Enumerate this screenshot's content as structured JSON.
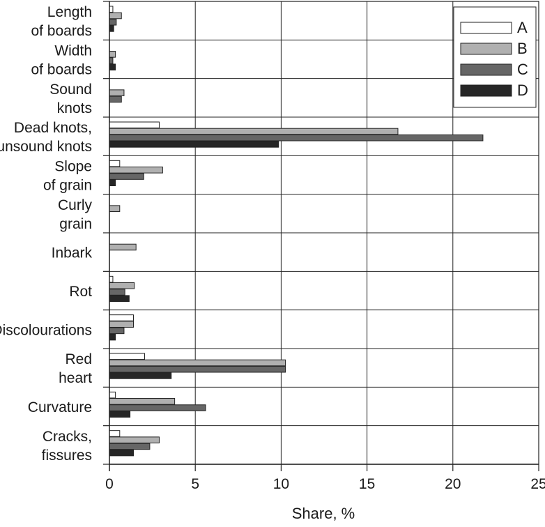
{
  "chart_data": {
    "type": "bar",
    "orientation": "horizontal",
    "title": "",
    "xlabel": "Share, %",
    "ylabel": "",
    "xlim": [
      0,
      25
    ],
    "x_ticks": [
      "0",
      "5",
      "10",
      "15",
      "20",
      "25"
    ],
    "grid": true,
    "legend_position": "top-right",
    "categories": [
      [
        "Length",
        "of boards"
      ],
      [
        "Width",
        "of boards"
      ],
      [
        "Sound",
        "knots"
      ],
      [
        "Dead knots,",
        "unsound knots"
      ],
      [
        "Slope",
        "of grain"
      ],
      [
        "Curly",
        "grain"
      ],
      [
        "Inbark"
      ],
      [
        "Rot"
      ],
      [
        "Discolourations"
      ],
      [
        "Red",
        "heart"
      ],
      [
        "Curvature"
      ],
      [
        "Cracks,",
        "fissures"
      ]
    ],
    "series": [
      {
        "name": "A",
        "color": "#ffffff",
        "values": [
          0.2,
          0,
          0,
          2.9,
          0.6,
          0,
          0,
          0.2,
          1.4,
          2.05,
          0.35,
          0.6
        ]
      },
      {
        "name": "B",
        "color": "#b0b0b0",
        "values": [
          0.7,
          0.35,
          0.85,
          16.8,
          3.1,
          0.6,
          1.55,
          1.45,
          1.4,
          10.25,
          3.8,
          2.9
        ]
      },
      {
        "name": "C",
        "color": "#666666",
        "values": [
          0.4,
          0.2,
          0.7,
          21.75,
          2.0,
          0,
          0,
          0.9,
          0.85,
          10.25,
          5.6,
          2.35
        ]
      },
      {
        "name": "D",
        "color": "#262626",
        "values": [
          0.25,
          0.35,
          0,
          9.85,
          0.35,
          0,
          0,
          1.15,
          0.35,
          3.6,
          1.2,
          1.4
        ]
      }
    ]
  }
}
